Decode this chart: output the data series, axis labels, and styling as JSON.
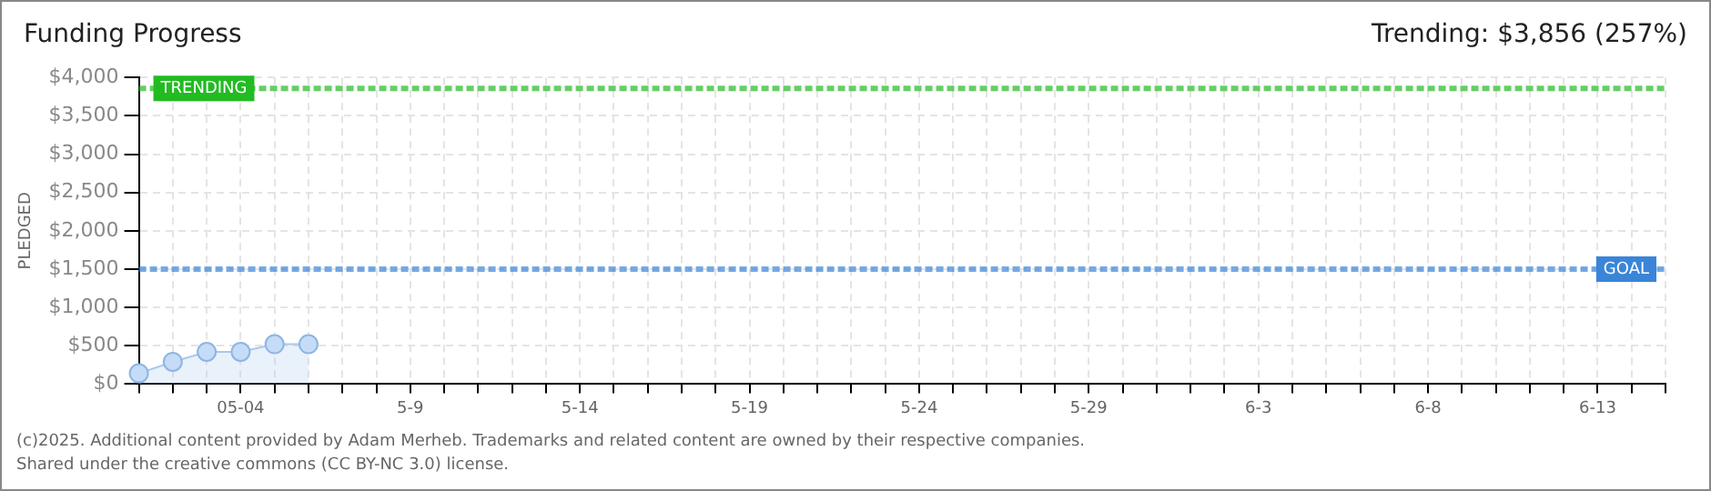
{
  "chart_data": {
    "type": "area",
    "title": "Funding Progress",
    "ylabel": "PLEDGED",
    "annotations": [
      "Trending: $3,856 (257%)",
      "(c)2025. Additional content provided by Adam Merheb. Trademarks and related content are owned by their respective companies.",
      "Shared under the creative commons (CC BY-NC 3.0) license."
    ],
    "categories": [
      null,
      null,
      null,
      "05-04",
      null,
      null,
      null,
      null,
      "5-9",
      null,
      null,
      null,
      null,
      "5-14",
      null,
      null,
      null,
      null,
      "5-19",
      null,
      null,
      null,
      null,
      "5-24",
      null,
      null,
      null,
      null,
      "5-29",
      null,
      null,
      null,
      null,
      "6-3",
      null,
      null,
      null,
      null,
      "6-8",
      null,
      null,
      null,
      null,
      "6-13",
      null,
      null
    ],
    "series": [
      {
        "color": "#a9c8ee",
        "values": [
          140,
          290,
          420,
          420,
          520,
          520,
          null,
          null,
          null,
          null,
          null,
          null,
          null,
          null,
          null,
          null,
          null,
          null,
          null,
          null,
          null,
          null,
          null,
          null,
          null,
          null,
          null,
          null,
          null,
          null,
          null,
          null,
          null,
          null,
          null,
          null,
          null,
          null,
          null,
          null,
          null,
          null,
          null,
          null,
          null,
          null
        ]
      }
    ],
    "ylim": [
      0,
      4000
    ],
    "yticks": [
      {
        "value": 0,
        "label": "$0"
      },
      {
        "value": 500,
        "label": "$500"
      },
      {
        "value": 1000,
        "label": "$1,000"
      },
      {
        "value": 1500,
        "label": "$1,500"
      },
      {
        "value": 2000,
        "label": "$2,000"
      },
      {
        "value": 2500,
        "label": "$2,500"
      },
      {
        "value": 3000,
        "label": "$3,000"
      },
      {
        "value": 3500,
        "label": "$3,500"
      },
      {
        "value": 4000,
        "label": "$4,000"
      }
    ],
    "ref_lines": [
      {
        "axis": "y",
        "value": 3856,
        "label": "TRENDING",
        "color": "#22bb22",
        "line_style": "dashed"
      },
      {
        "axis": "y",
        "value": 1500,
        "label": "GOAL",
        "color": "#3a85d8",
        "line_style": "dashed"
      }
    ],
    "grid": true,
    "marker": "circle",
    "legend": false
  }
}
